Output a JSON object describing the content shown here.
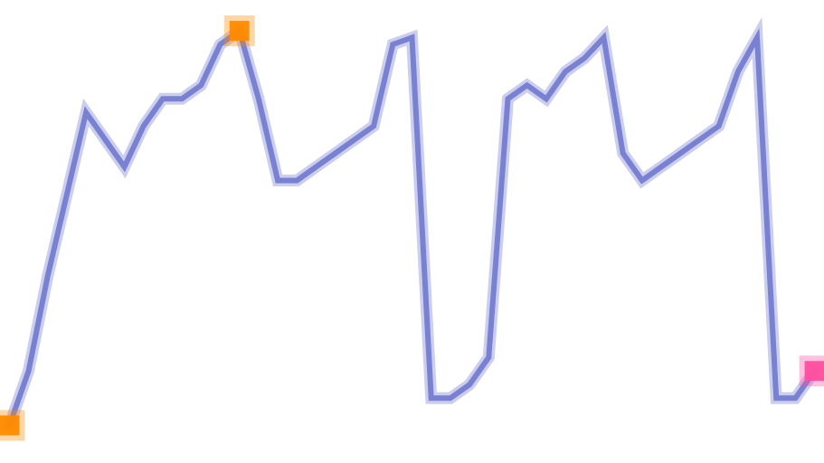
{
  "chart_data": {
    "type": "line",
    "title": "",
    "xlabel": "",
    "ylabel": "",
    "grid": false,
    "legend": "none",
    "axes_visible": false,
    "x": [
      0,
      1,
      2,
      3,
      4,
      5,
      6,
      7,
      8,
      9,
      10,
      11,
      12,
      13,
      14,
      15,
      16,
      17,
      18,
      19,
      20,
      21,
      22,
      23,
      24,
      25,
      26,
      27,
      28,
      29,
      30,
      31,
      32,
      33,
      34,
      35,
      36,
      37,
      38,
      39,
      40,
      41,
      42
    ],
    "xlim": [
      -0.3,
      42.3
    ],
    "ylim": [
      -1.5,
      32
    ],
    "series": [
      {
        "color": "#6b73cc",
        "values": [
          1.0,
          5.0,
          12.0,
          18.0,
          24.0,
          22.0,
          20.0,
          23.0,
          25.0,
          25.0,
          26.0,
          29.0,
          30.0,
          25.0,
          19.0,
          19.0,
          20.0,
          21.0,
          22.0,
          23.0,
          29.0,
          29.5,
          3.0,
          3.0,
          4.0,
          6.0,
          25.0,
          26.0,
          25.0,
          27.0,
          28.0,
          29.5,
          21.0,
          19.0,
          20.0,
          21.0,
          22.0,
          23.0,
          27.0,
          29.5,
          3.0,
          3.0,
          5.0
        ]
      }
    ],
    "markers": [
      {
        "x": 0,
        "y": 1.0,
        "color": "#ff8a00"
      },
      {
        "x": 12,
        "y": 30.0,
        "color": "#ff8a00"
      },
      {
        "x": 42,
        "y": 5.0,
        "color": "#ff4fa0"
      }
    ]
  }
}
